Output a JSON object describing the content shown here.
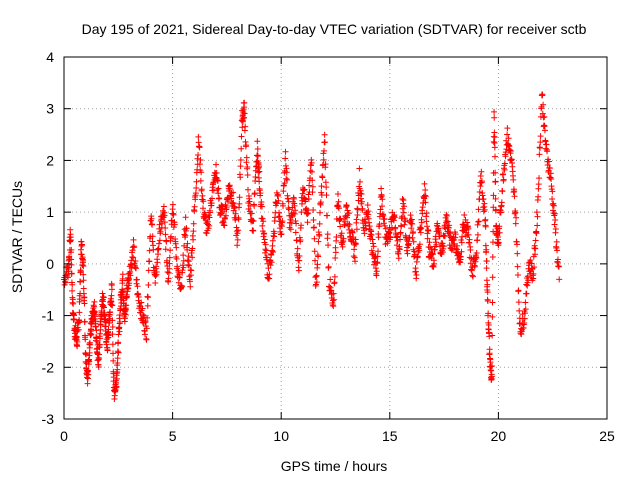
{
  "chart_data": {
    "type": "scatter",
    "title": "Day 195 of 2021, Sidereal Day-to-day VTEC variation (SDTVAR) for receiver sctb",
    "xlabel": "GPS time / hours",
    "ylabel": "SDTVAR / TECUs",
    "xlim": [
      0,
      25
    ],
    "ylim": [
      -3,
      4
    ],
    "xticks": [
      0,
      5,
      10,
      15,
      20,
      25
    ],
    "yticks": [
      -3,
      -2,
      -1,
      0,
      1,
      2,
      3,
      4
    ],
    "xtick_labels": [
      "0",
      "5",
      "10",
      "15",
      "20",
      "25"
    ],
    "ytick_labels": [
      "-3",
      "-2",
      "-1",
      "0",
      "1",
      "2",
      "3",
      "4"
    ],
    "grid": true,
    "marker": "+",
    "series": [
      {
        "name": "SDTVAR",
        "color": "#ff0000",
        "x": [
          0.0,
          0.2,
          0.3,
          0.4,
          0.5,
          0.6,
          0.7,
          0.8,
          0.9,
          1.0,
          1.1,
          1.2,
          1.3,
          1.4,
          1.5,
          1.6,
          1.7,
          1.8,
          1.9,
          2.0,
          2.1,
          2.2,
          2.3,
          2.4,
          2.5,
          2.6,
          2.7,
          2.8,
          2.9,
          3.0,
          3.2,
          3.4,
          3.6,
          3.8,
          4.0,
          4.2,
          4.4,
          4.6,
          4.8,
          5.0,
          5.2,
          5.4,
          5.6,
          5.8,
          6.0,
          6.2,
          6.4,
          6.6,
          6.8,
          7.0,
          7.2,
          7.4,
          7.6,
          7.8,
          8.0,
          8.2,
          8.3,
          8.5,
          8.7,
          8.9,
          9.0,
          9.2,
          9.4,
          9.6,
          9.8,
          10.0,
          10.2,
          10.4,
          10.6,
          10.8,
          11.0,
          11.2,
          11.4,
          11.6,
          11.8,
          12.0,
          12.2,
          12.4,
          12.6,
          12.8,
          13.0,
          13.2,
          13.4,
          13.6,
          13.8,
          14.0,
          14.2,
          14.4,
          14.6,
          14.8,
          15.0,
          15.2,
          15.4,
          15.6,
          15.8,
          16.0,
          16.2,
          16.4,
          16.6,
          16.8,
          17.0,
          17.2,
          17.4,
          17.6,
          17.8,
          18.0,
          18.2,
          18.4,
          18.6,
          18.8,
          19.0,
          19.2,
          19.4,
          19.5,
          19.6,
          19.7,
          19.8,
          19.9,
          20.0,
          20.2,
          20.4,
          20.6,
          20.8,
          21.0,
          21.2,
          21.4,
          21.6,
          21.8,
          22.0,
          22.2,
          22.4,
          22.6,
          22.8
        ],
        "y": [
          -0.3,
          -0.1,
          0.6,
          -0.8,
          -1.3,
          -1.5,
          -1.0,
          0.4,
          -0.2,
          -1.8,
          -2.2,
          -1.4,
          -1.1,
          -0.9,
          -1.5,
          -1.9,
          -1.0,
          -0.6,
          -1.2,
          -1.6,
          -1.0,
          -0.5,
          -2.5,
          -2.3,
          -1.6,
          -0.8,
          -0.3,
          -1.1,
          -0.5,
          -0.2,
          0.3,
          -0.6,
          -1.0,
          -1.3,
          1.0,
          -0.4,
          0.6,
          1.0,
          -0.3,
          1.2,
          0.0,
          -0.6,
          0.8,
          -0.4,
          1.0,
          2.4,
          1.1,
          0.6,
          1.3,
          1.8,
          1.0,
          0.9,
          1.5,
          1.2,
          0.4,
          2.8,
          3.0,
          1.2,
          0.7,
          2.2,
          1.6,
          0.5,
          -0.2,
          0.2,
          1.4,
          0.6,
          2.0,
          0.7,
          1.2,
          -0.1,
          1.6,
          0.8,
          2.1,
          -0.5,
          1.0,
          2.4,
          -0.3,
          -0.9,
          1.3,
          0.4,
          1.1,
          0.6,
          0.2,
          1.7,
          0.7,
          1.0,
          0.3,
          -0.1,
          1.4,
          0.5,
          0.6,
          1.0,
          0.1,
          1.2,
          0.3,
          0.9,
          -0.2,
          0.6,
          1.5,
          0.3,
          0.0,
          0.7,
          0.2,
          0.9,
          0.4,
          0.5,
          0.0,
          0.8,
          0.6,
          -0.2,
          0.3,
          1.7,
          0.8,
          -0.6,
          -1.8,
          -2.3,
          3.0,
          0.7,
          0.4,
          1.6,
          2.5,
          2.0,
          0.9,
          -1.3,
          -1.0,
          0.0,
          -0.2,
          1.0,
          3.3,
          2.2,
          1.7,
          0.8,
          -0.3
        ]
      }
    ]
  }
}
